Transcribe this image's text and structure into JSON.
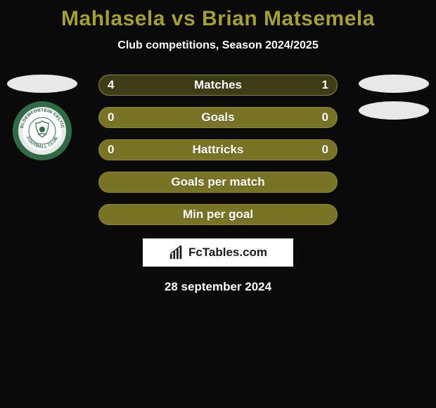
{
  "colors": {
    "background": "#0a0a0a",
    "title": "#a6a02d",
    "subtitle": "#ffffff",
    "bar_bg": "#787325",
    "bar_dark": "#3f3d17",
    "bar_border": "#8f8a2f",
    "bar_text": "#ffffff",
    "ellipse": "#e8e8e8",
    "branding_bg": "#ffffff",
    "branding_border": "#0a0a0a",
    "branding_text": "#1a1a1a",
    "date_text": "#ffffff",
    "badge_outer": "#e8e8e8",
    "badge_ring": "#2f6b44",
    "badge_inner": "#ffffff",
    "badge_text": "#2f6b44"
  },
  "title": "Mahlasela vs Brian Matsemela",
  "subtitle": "Club competitions, Season 2024/2025",
  "badge": {
    "top_text": "BLOEMFONTEIN CELTIC",
    "bottom_text": "FOOTBALL CLUB"
  },
  "bars": [
    {
      "label": "Matches",
      "left": "4",
      "right": "1",
      "left_pct": 80,
      "right_pct": 20
    },
    {
      "label": "Goals",
      "left": "0",
      "right": "0",
      "left_pct": 0,
      "right_pct": 0
    },
    {
      "label": "Hattricks",
      "left": "0",
      "right": "0",
      "left_pct": 0,
      "right_pct": 0
    },
    {
      "label": "Goals per match",
      "left": "",
      "right": "",
      "left_pct": 0,
      "right_pct": 0
    },
    {
      "label": "Min per goal",
      "left": "",
      "right": "",
      "left_pct": 0,
      "right_pct": 0
    }
  ],
  "branding": "FcTables.com",
  "date": "28 september 2024"
}
